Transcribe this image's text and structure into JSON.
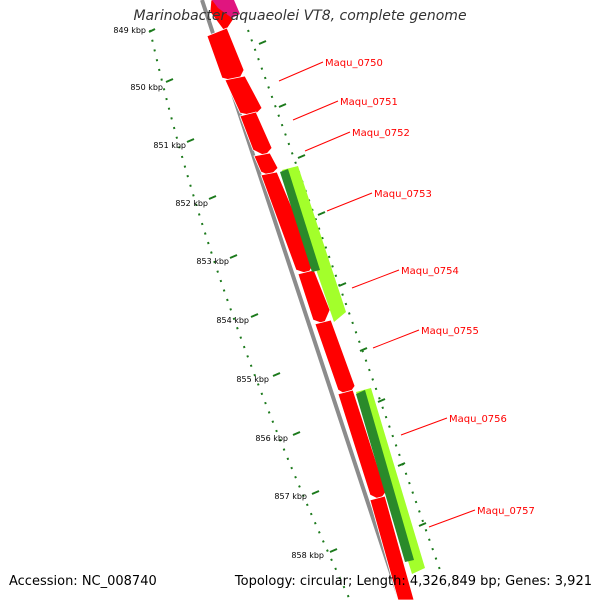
{
  "title": "Marinobacter aquaeolei VT8, complete genome",
  "accession_text": "Accession: NC_008740",
  "summary_text": "Topology: circular; Length: 4,326,849 bp; Genes: 3,921",
  "colors": {
    "gene_red": "#ff0000",
    "gene_pink": "#e0157f",
    "gene_lime": "#a3ff2b",
    "gene_dark_green": "#2a8a2a",
    "backbone": "#8c8c8c",
    "tick_green": "#1c7a1c",
    "label_red": "#ff0000"
  },
  "ruler": [
    {
      "label": "849 kbp"
    },
    {
      "label": "850 kbp"
    },
    {
      "label": "851 kbp"
    },
    {
      "label": "852 kbp"
    },
    {
      "label": "853 kbp"
    },
    {
      "label": "854 kbp"
    },
    {
      "label": "855 kbp"
    },
    {
      "label": "856 kbp"
    },
    {
      "label": "857 kbp"
    },
    {
      "label": "858 kbp"
    }
  ],
  "genes": [
    {
      "label": "Maqu_0750"
    },
    {
      "label": "Maqu_0751"
    },
    {
      "label": "Maqu_0752"
    },
    {
      "label": "Maqu_0753"
    },
    {
      "label": "Maqu_0754"
    },
    {
      "label": "Maqu_0755"
    },
    {
      "label": "Maqu_0756"
    },
    {
      "label": "Maqu_0757"
    }
  ]
}
